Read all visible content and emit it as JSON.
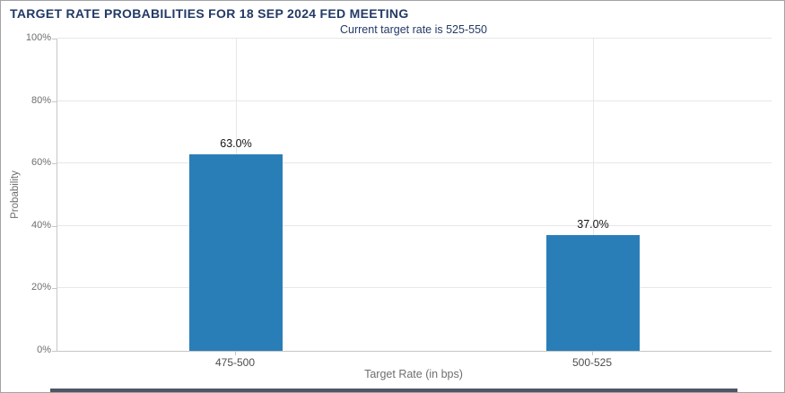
{
  "header": {
    "title": "TARGET RATE PROBABILITIES FOR 18 SEP 2024 FED MEETING"
  },
  "chart_data": {
    "type": "bar",
    "title": "TARGET RATE PROBABILITIES FOR 18 SEP 2024 FED MEETING",
    "subtitle": "Current target rate is 525-550",
    "categories": [
      "475-500",
      "500-525"
    ],
    "values": [
      63.0,
      37.0
    ],
    "value_labels": [
      "63.0%",
      "37.0%"
    ],
    "xlabel": "Target Rate (in bps)",
    "ylabel": "Probability",
    "ylim": [
      0,
      100
    ],
    "ytick_interval": 20,
    "ytick_labels": [
      "0%",
      "20%",
      "40%",
      "60%",
      "80%",
      "100%"
    ],
    "grid": true,
    "legend": false,
    "colors": {
      "bar": "#2a7eb8",
      "title": "#233a66",
      "gridline": "#e7e7e7",
      "axis": "#c6c6c6",
      "y_tick_label": "#6e6e6e",
      "x_tick_label": "#4d4d4d",
      "value_label": "#141414",
      "bottom_divider": "#4e5564"
    }
  }
}
